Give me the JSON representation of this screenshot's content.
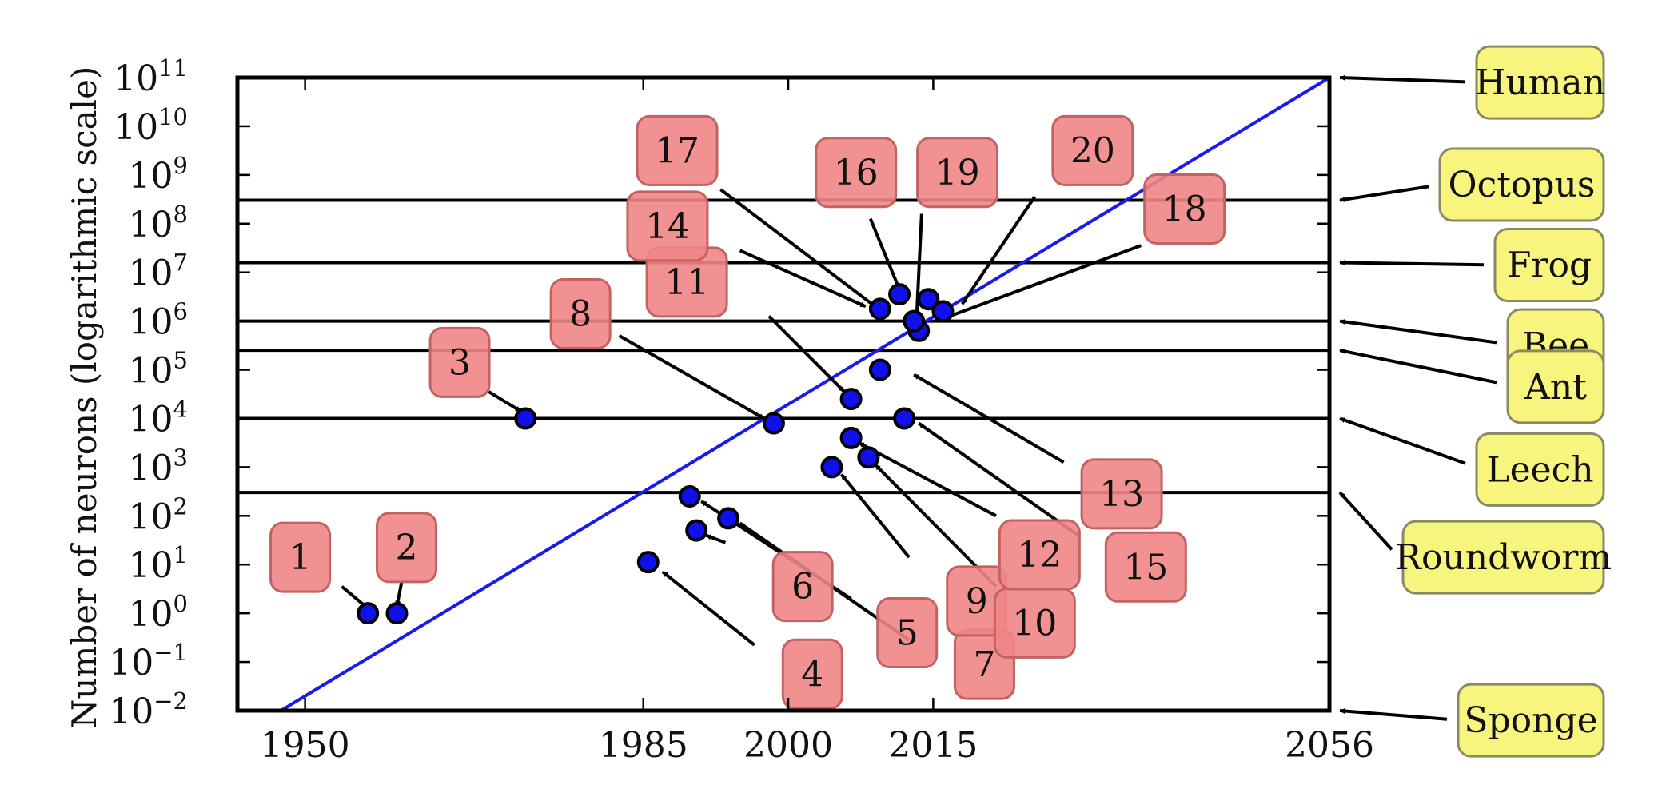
{
  "chart_data": {
    "type": "scatter",
    "title": "",
    "xlabel": "",
    "ylabel": "Number of neurons (logarithmic scale)",
    "y_scale": "log",
    "xlim": [
      1943,
      2056
    ],
    "ylim_exp": [
      -2,
      11
    ],
    "x_ticks": [
      {
        "value": 1950,
        "label": "1950"
      },
      {
        "value": 1985,
        "label": "1985"
      },
      {
        "value": 2000,
        "label": "2000"
      },
      {
        "value": 2015,
        "label": "2015"
      },
      {
        "value": 2056,
        "label": "2056"
      }
    ],
    "y_ticks": [
      {
        "exp": 11,
        "base": "10",
        "sup": "11"
      },
      {
        "exp": 10,
        "base": "10",
        "sup": "10"
      },
      {
        "exp": 9,
        "base": "10",
        "sup": "9"
      },
      {
        "exp": 8,
        "base": "10",
        "sup": "8"
      },
      {
        "exp": 7,
        "base": "10",
        "sup": "7"
      },
      {
        "exp": 6,
        "base": "10",
        "sup": "6"
      },
      {
        "exp": 5,
        "base": "10",
        "sup": "5"
      },
      {
        "exp": 4,
        "base": "10",
        "sup": "4"
      },
      {
        "exp": 3,
        "base": "10",
        "sup": "3"
      },
      {
        "exp": 2,
        "base": "10",
        "sup": "2"
      },
      {
        "exp": 1,
        "base": "10",
        "sup": "1"
      },
      {
        "exp": 0,
        "base": "10",
        "sup": "0"
      },
      {
        "exp": -1,
        "base": "10",
        "sup": "−1"
      },
      {
        "exp": -2,
        "base": "10",
        "sup": "−2"
      }
    ],
    "trend_line": {
      "x": [
        1947.5,
        2056
      ],
      "exp": [
        -2,
        11
      ],
      "color": "#1a1aee"
    },
    "networks": [
      {
        "id": "1",
        "x": 1956.5,
        "exp": 0.0,
        "label_x": 1949.5,
        "label_exp": 1.15
      },
      {
        "id": "2",
        "x": 1959.5,
        "exp": 0.0,
        "label_x": 1960.5,
        "label_exp": 1.35
      },
      {
        "id": "3",
        "x": 1972.8,
        "exp": 4.0,
        "label_x": 1966.0,
        "label_exp": 5.15
      },
      {
        "id": "4",
        "x": 1985.5,
        "exp": 1.05,
        "label_x": 2002.5,
        "label_exp": -1.25
      },
      {
        "id": "5",
        "x": 1989.8,
        "exp": 2.4,
        "label_x": 2012.3,
        "label_exp": -0.4
      },
      {
        "id": "6",
        "x": 1990.5,
        "exp": 1.7,
        "label_x": 2001.5,
        "label_exp": 0.55
      },
      {
        "id": "7",
        "x": 1993.8,
        "exp": 1.95,
        "label_x": 2020.3,
        "label_exp": -1.05
      },
      {
        "id": "8",
        "x": 1998.5,
        "exp": 3.9,
        "label_x": 1978.5,
        "label_exp": 6.15
      },
      {
        "id": "9",
        "x": 2004.5,
        "exp": 3.0,
        "label_x": 2019.5,
        "label_exp": 0.25
      },
      {
        "id": "10",
        "x": 2008.3,
        "exp": 3.2,
        "label_x": 2025.5,
        "label_exp": -0.2
      },
      {
        "id": "11",
        "x": 2006.5,
        "exp": 4.4,
        "label_x": 1989.5,
        "label_exp": 6.8
      },
      {
        "id": "12",
        "x": 2006.5,
        "exp": 3.6,
        "label_x": 2026.0,
        "label_exp": 1.2
      },
      {
        "id": "13",
        "x": 2012.0,
        "exp": 4.0,
        "label_x": 2034.5,
        "label_exp": 2.45
      },
      {
        "id": "14",
        "x": 2009.5,
        "exp": 6.25,
        "label_x": 1987.5,
        "label_exp": 7.95
      },
      {
        "id": "15",
        "x": 2009.5,
        "exp": 5.0,
        "label_x": 2037.0,
        "label_exp": 0.95
      },
      {
        "id": "16",
        "x": 2011.5,
        "exp": 6.55,
        "label_x": 2007.0,
        "label_exp": 9.05
      },
      {
        "id": "17",
        "x": 2013.5,
        "exp": 5.8,
        "label_x": 1988.5,
        "label_exp": 9.5
      },
      {
        "id": "18",
        "x": 2014.5,
        "exp": 6.45,
        "label_x": 2041.0,
        "label_exp": 8.3
      },
      {
        "id": "19",
        "x": 2013.0,
        "exp": 6.0,
        "label_x": 2017.5,
        "label_exp": 9.05
      },
      {
        "id": "20",
        "x": 2016.0,
        "exp": 6.2,
        "label_x": 2031.5,
        "label_exp": 9.5
      }
    ],
    "network_arrows": [
      {
        "id": "1",
        "from_x": 1953.8,
        "from_exp": 0.55,
        "to_x": 1956.5,
        "to_exp": 0.1
      },
      {
        "id": "2",
        "from_x": 1960.0,
        "from_exp": 0.65,
        "to_x": 1959.5,
        "to_exp": 0.15
      },
      {
        "id": "3",
        "from_x": 1969.0,
        "from_exp": 4.55,
        "to_x": 1972.3,
        "to_exp": 4.15
      },
      {
        "id": "4",
        "from_x": 1996.5,
        "from_exp": -0.65,
        "to_x": 1987.0,
        "to_exp": 0.85
      },
      {
        "id": "5",
        "from_x": 2006.5,
        "from_exp": 0.3,
        "to_x": 1991.0,
        "to_exp": 2.3
      },
      {
        "id": "6",
        "from_x": 1993.5,
        "from_exp": 1.45,
        "to_x": 1991.5,
        "to_exp": 1.6
      },
      {
        "id": "7",
        "from_x": 2012.5,
        "from_exp": -0.55,
        "to_x": 1995.0,
        "to_exp": 1.85
      },
      {
        "id": "8",
        "from_x": 1982.5,
        "from_exp": 5.7,
        "to_x": 1997.5,
        "to_exp": 4.0
      },
      {
        "id": "9",
        "from_x": 2012.5,
        "from_exp": 1.15,
        "to_x": 2005.5,
        "to_exp": 2.85
      },
      {
        "id": "10",
        "from_x": 2021.5,
        "from_exp": 0.55,
        "to_x": 2009.0,
        "to_exp": 3.05
      },
      {
        "id": "11",
        "from_x": 1998.0,
        "from_exp": 6.1,
        "to_x": 2005.8,
        "to_exp": 4.55
      },
      {
        "id": "12",
        "from_x": 2021.5,
        "from_exp": 2.0,
        "to_x": 2007.3,
        "to_exp": 3.5
      },
      {
        "id": "13",
        "from_x": 2028.5,
        "from_exp": 3.1,
        "to_x": 2013.0,
        "to_exp": 4.9
      },
      {
        "id": "14",
        "from_x": 1995.0,
        "from_exp": 7.45,
        "to_x": 2008.0,
        "to_exp": 6.3
      },
      {
        "id": "15",
        "from_x": 2030.0,
        "from_exp": 1.6,
        "to_x": 2013.5,
        "to_exp": 3.9
      },
      {
        "id": "16",
        "from_x": 2008.5,
        "from_exp": 8.1,
        "to_x": 2011.5,
        "to_exp": 6.65
      },
      {
        "id": "17",
        "from_x": 1993.0,
        "from_exp": 8.7,
        "to_x": 2009.0,
        "to_exp": 6.3
      },
      {
        "id": "18",
        "from_x": 2036.5,
        "from_exp": 7.55,
        "to_x": 2016.0,
        "to_exp": 6.05
      },
      {
        "id": "19",
        "from_x": 2013.8,
        "from_exp": 8.2,
        "to_x": 2013.3,
        "to_exp": 6.15
      },
      {
        "id": "20",
        "from_x": 2025.5,
        "from_exp": 8.55,
        "to_x": 2018.0,
        "to_exp": 6.35
      }
    ],
    "animals": [
      {
        "name": "Human",
        "exp": 11.0,
        "label_exp": 10.9
      },
      {
        "name": "Octopus",
        "exp": 8.48,
        "label_exp": 8.8
      },
      {
        "name": "Frog",
        "exp": 7.2,
        "label_exp": 7.15
      },
      {
        "name": "Bee",
        "exp": 6.0,
        "label_exp": 5.5
      },
      {
        "name": "Ant",
        "exp": 5.4,
        "label_exp": 4.65
      },
      {
        "name": "Leech",
        "exp": 4.0,
        "label_exp": 2.95
      },
      {
        "name": "Roundworm",
        "exp": 2.48,
        "label_exp": 1.15
      },
      {
        "name": "Sponge",
        "exp": -2.0,
        "label_exp": -2.2
      }
    ],
    "colors": {
      "point_fill": "#1010ee",
      "point_stroke": "#000000",
      "network_box": "#ef8585",
      "network_box_stroke": "#c26262",
      "animal_box": "#f8f57e",
      "animal_box_stroke": "#8a8a60",
      "arrow": "#000000",
      "trend_line": "#1a1aee"
    },
    "grid": false,
    "legend": "none"
  }
}
